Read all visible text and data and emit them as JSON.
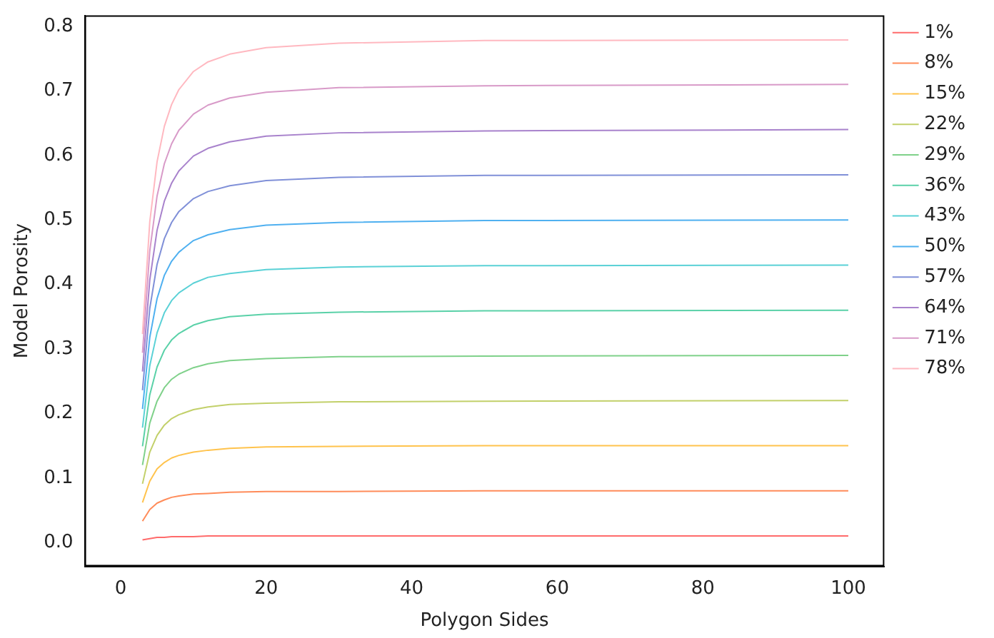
{
  "chart_data": {
    "type": "line",
    "xlabel": "Polygon Sides",
    "ylabel": "Model Porosity",
    "x": [
      3,
      4,
      5,
      6,
      7,
      8,
      10,
      12,
      15,
      20,
      30,
      50,
      100
    ],
    "xlim": [
      -4.95,
      104.95
    ],
    "xticks": [
      0,
      20,
      40,
      60,
      80,
      100
    ],
    "ylim": [
      -0.037,
      0.817
    ],
    "yticks": [
      {
        "value": 0,
        "label": "0.0"
      },
      {
        "value": 0.1,
        "label": "0.1"
      },
      {
        "value": 0.2,
        "label": "0.2"
      },
      {
        "value": 0.3,
        "label": "0.3"
      },
      {
        "value": 0.4,
        "label": "0.4"
      },
      {
        "value": 0.5,
        "label": "0.5"
      },
      {
        "value": 0.6,
        "label": "0.6"
      },
      {
        "value": 0.7,
        "label": "0.7"
      },
      {
        "value": 0.8,
        "label": "0.8"
      }
    ],
    "grid": false,
    "legend": "right",
    "marker": "none",
    "line_style": "solid",
    "series": [
      {
        "name": "1%",
        "color": "#ff6b6b",
        "values": [
          0.004,
          0.006,
          0.008,
          0.008,
          0.009,
          0.009,
          0.009,
          0.01,
          0.01,
          0.01,
          0.01,
          0.01,
          0.01
        ]
      },
      {
        "name": "8%",
        "color": "#ff8c5a",
        "values": [
          0.033,
          0.051,
          0.061,
          0.066,
          0.07,
          0.072,
          0.075,
          0.076,
          0.078,
          0.079,
          0.079,
          0.08,
          0.08
        ]
      },
      {
        "name": "15%",
        "color": "#ffc34d",
        "values": [
          0.062,
          0.095,
          0.114,
          0.124,
          0.131,
          0.135,
          0.14,
          0.143,
          0.146,
          0.148,
          0.149,
          0.15,
          0.15
        ]
      },
      {
        "name": "22%",
        "color": "#c2d06a",
        "values": [
          0.091,
          0.14,
          0.166,
          0.182,
          0.192,
          0.198,
          0.206,
          0.21,
          0.214,
          0.216,
          0.218,
          0.219,
          0.22
        ]
      },
      {
        "name": "29%",
        "color": "#7fd18a",
        "values": [
          0.12,
          0.185,
          0.219,
          0.24,
          0.253,
          0.261,
          0.271,
          0.277,
          0.282,
          0.285,
          0.288,
          0.289,
          0.29
        ]
      },
      {
        "name": "36%",
        "color": "#5ad1a8",
        "values": [
          0.149,
          0.229,
          0.272,
          0.298,
          0.314,
          0.324,
          0.337,
          0.344,
          0.35,
          0.354,
          0.357,
          0.359,
          0.36
        ]
      },
      {
        "name": "43%",
        "color": "#5ad1d6",
        "values": [
          0.178,
          0.274,
          0.325,
          0.356,
          0.375,
          0.387,
          0.402,
          0.411,
          0.417,
          0.423,
          0.427,
          0.429,
          0.43
        ]
      },
      {
        "name": "50%",
        "color": "#4fb0f0",
        "values": [
          0.207,
          0.318,
          0.378,
          0.414,
          0.436,
          0.45,
          0.468,
          0.477,
          0.485,
          0.492,
          0.496,
          0.499,
          0.5
        ]
      },
      {
        "name": "57%",
        "color": "#8090d8",
        "values": [
          0.236,
          0.363,
          0.431,
          0.471,
          0.496,
          0.513,
          0.533,
          0.544,
          0.553,
          0.561,
          0.566,
          0.569,
          0.57
        ]
      },
      {
        "name": "64%",
        "color": "#a882cc",
        "values": [
          0.265,
          0.407,
          0.484,
          0.529,
          0.557,
          0.576,
          0.599,
          0.611,
          0.621,
          0.63,
          0.635,
          0.638,
          0.64
        ]
      },
      {
        "name": "71%",
        "color": "#d89ac8",
        "values": [
          0.294,
          0.452,
          0.537,
          0.587,
          0.618,
          0.639,
          0.664,
          0.678,
          0.689,
          0.698,
          0.705,
          0.708,
          0.71
        ]
      },
      {
        "name": "78%",
        "color": "#ffb8c0",
        "values": [
          0.323,
          0.497,
          0.59,
          0.645,
          0.679,
          0.702,
          0.73,
          0.745,
          0.757,
          0.767,
          0.774,
          0.778,
          0.779
        ]
      }
    ]
  }
}
